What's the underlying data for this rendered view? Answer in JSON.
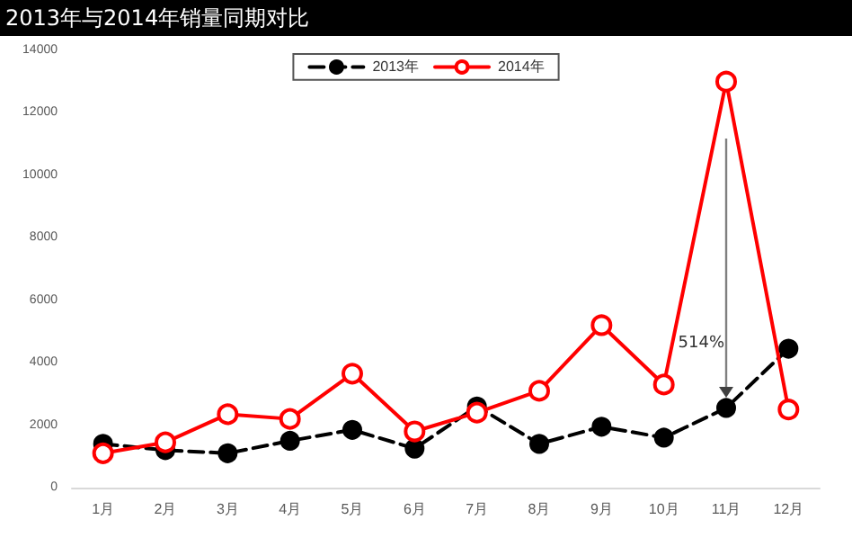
{
  "chart_data": {
    "type": "line",
    "title": "2013年与2014年销量同期对比",
    "categories": [
      "1月",
      "2月",
      "3月",
      "4月",
      "5月",
      "6月",
      "7月",
      "8月",
      "9月",
      "10月",
      "11月",
      "12月"
    ],
    "series": [
      {
        "name": "2013年",
        "color": "#000000",
        "line_style": "dashed",
        "values": [
          1400,
          1200,
          1100,
          1500,
          1850,
          1250,
          2600,
          1400,
          1950,
          1600,
          2550,
          4450
        ]
      },
      {
        "name": "2014年",
        "color": "#ff0000",
        "line_style": "solid",
        "values": [
          1100,
          1450,
          2350,
          2200,
          3650,
          1800,
          2400,
          3100,
          5200,
          3300,
          13000,
          2500
        ]
      }
    ],
    "ylim": [
      0,
      14000
    ],
    "yticks": [
      0,
      2000,
      4000,
      6000,
      8000,
      10000,
      12000,
      14000
    ],
    "grid": false,
    "legend": "top",
    "marker": "circle",
    "annotations": [
      "514%"
    ]
  }
}
